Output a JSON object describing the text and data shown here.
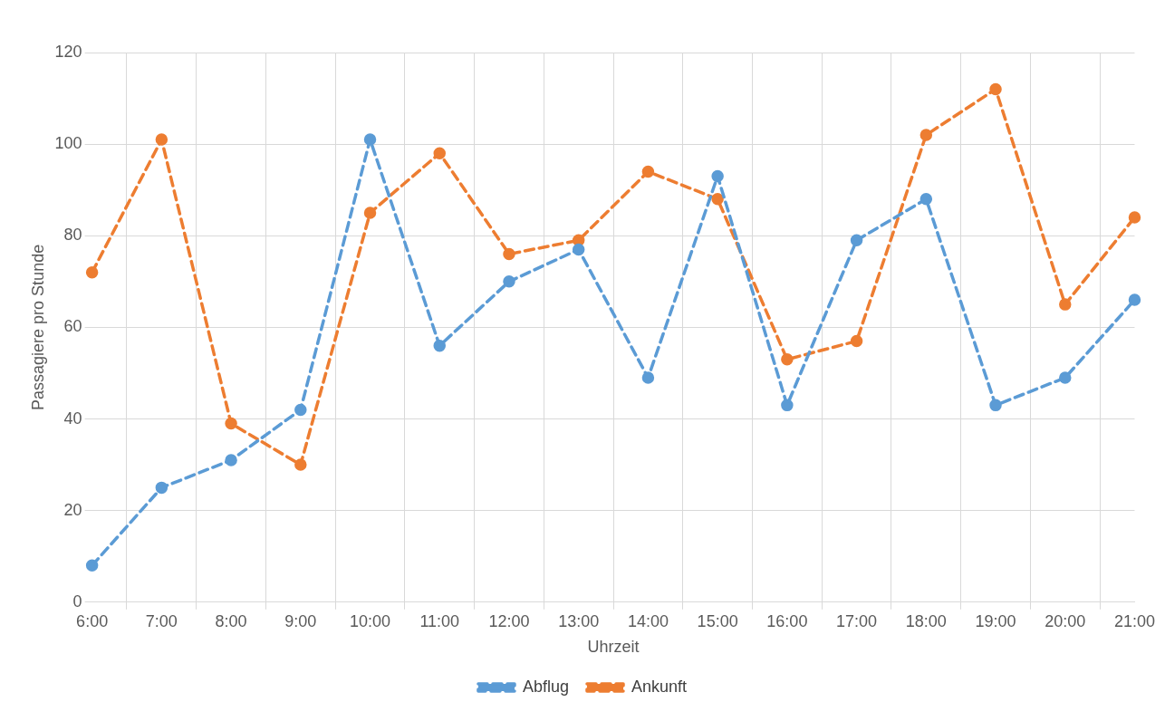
{
  "chart_data": {
    "type": "line",
    "xlabel": "Uhrzeit",
    "ylabel": "Passagiere pro Stunde",
    "categories": [
      "6:00",
      "7:00",
      "8:00",
      "9:00",
      "10:00",
      "11:00",
      "12:00",
      "13:00",
      "14:00",
      "15:00",
      "16:00",
      "17:00",
      "18:00",
      "19:00",
      "20:00",
      "21:00"
    ],
    "series": [
      {
        "name": "Abflug",
        "color": "#5b9bd5",
        "values": [
          8,
          25,
          31,
          42,
          101,
          56,
          70,
          77,
          49,
          93,
          43,
          79,
          88,
          43,
          49,
          66
        ]
      },
      {
        "name": "Ankunft",
        "color": "#ed7d31",
        "values": [
          72,
          101,
          39,
          30,
          85,
          98,
          76,
          79,
          94,
          88,
          53,
          57,
          102,
          112,
          65,
          84
        ]
      }
    ],
    "ylim": [
      0,
      120
    ],
    "yticks": [
      0,
      20,
      40,
      60,
      80,
      100,
      120
    ],
    "grid": true,
    "legend": "bottom",
    "marker": "circle",
    "line_style": "dashed"
  }
}
